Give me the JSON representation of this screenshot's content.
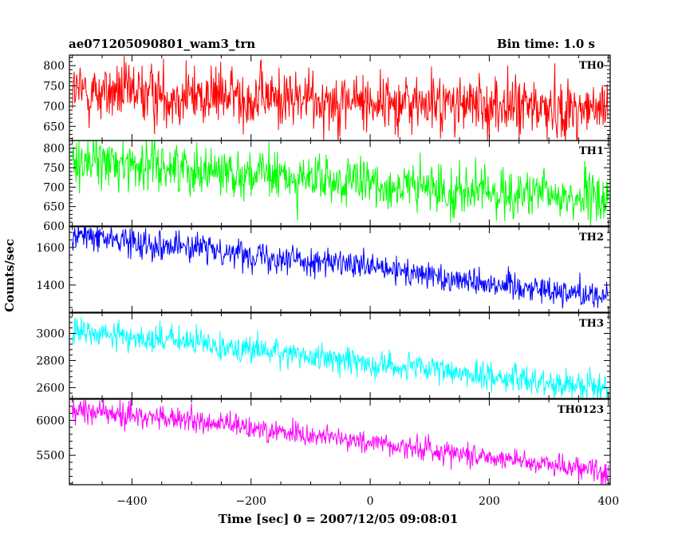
{
  "header": {
    "title": "ae071205090801_wam3_trn",
    "bin_time": "Bin time: 1.0 s"
  },
  "chart_data": {
    "type": "line",
    "xlabel": "Time [sec] 0 = 2007/12/05 09:08:01",
    "ylabel": "Counts/sec",
    "xlim": [
      -505,
      403
    ],
    "x_ticks": [
      -400,
      -200,
      0,
      200,
      400
    ],
    "x_tick_labels": [
      "−400",
      "−200",
      "0",
      "200",
      "400"
    ],
    "x_step": 1.0,
    "x_start": -500,
    "x_end": 400,
    "panels": [
      {
        "name": "TH0",
        "color": "#ff0000",
        "ylim": [
          615,
          826
        ],
        "y_ticks": [
          650,
          700,
          750,
          800
        ],
        "y_tick_labels": [
          "650",
          "700",
          "750",
          "800"
        ],
        "trend": [
          [
            -500,
            735
          ],
          [
            -300,
            727
          ],
          [
            -100,
            717
          ],
          [
            100,
            706
          ],
          [
            300,
            695
          ],
          [
            400,
            688
          ]
        ],
        "noise_sd": 38
      },
      {
        "name": "TH1",
        "color": "#00ff00",
        "ylim": [
          600,
          820
        ],
        "y_ticks": [
          600,
          650,
          700,
          750,
          800
        ],
        "y_tick_labels": [
          "600",
          "650",
          "700",
          "750",
          "800"
        ],
        "trend": [
          [
            -500,
            770
          ],
          [
            -300,
            750
          ],
          [
            -100,
            718
          ],
          [
            100,
            695
          ],
          [
            300,
            678
          ],
          [
            400,
            668
          ]
        ],
        "noise_sd": 32
      },
      {
        "name": "TH2",
        "color": "#0000ff",
        "ylim": [
          1255,
          1710
        ],
        "y_ticks": [
          1400,
          1600
        ],
        "y_tick_labels": [
          "1400",
          "1600"
        ],
        "trend": [
          [
            -500,
            1665
          ],
          [
            -300,
            1600
          ],
          [
            -100,
            1530
          ],
          [
            100,
            1450
          ],
          [
            300,
            1375
          ],
          [
            400,
            1340
          ]
        ],
        "noise_sd": 38
      },
      {
        "name": "TH3",
        "color": "#00ffff",
        "ylim": [
          2520,
          3150
        ],
        "y_ticks": [
          2600,
          2800,
          3000
        ],
        "y_tick_labels": [
          "2600",
          "2800",
          "3000"
        ],
        "trend": [
          [
            -500,
            3010
          ],
          [
            -300,
            2935
          ],
          [
            -100,
            2830
          ],
          [
            100,
            2730
          ],
          [
            300,
            2640
          ],
          [
            400,
            2600
          ]
        ],
        "noise_sd": 52
      },
      {
        "name": "TH0123",
        "color": "#ff00ff",
        "ylim": [
          5080,
          6300
        ],
        "y_ticks": [
          5500,
          6000
        ],
        "y_tick_labels": [
          "5500",
          "6000"
        ],
        "trend": [
          [
            -500,
            6150
          ],
          [
            -300,
            5990
          ],
          [
            -100,
            5790
          ],
          [
            100,
            5580
          ],
          [
            300,
            5380
          ],
          [
            400,
            5270
          ]
        ],
        "noise_sd": 85
      }
    ]
  }
}
